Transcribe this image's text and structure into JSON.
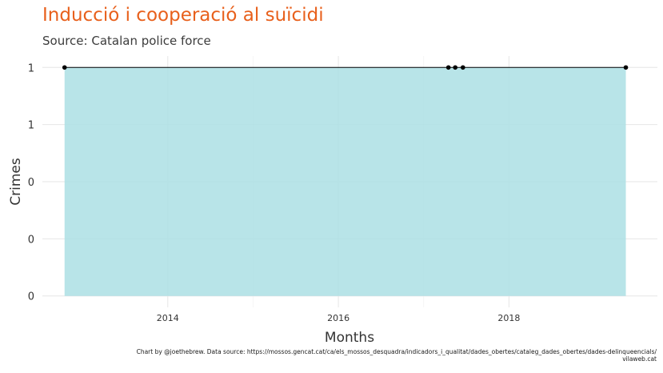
{
  "chart_data": {
    "type": "area",
    "title": "Inducció i cooperació al suïcidi",
    "subtitle": "Source: Catalan police force",
    "xlabel": "Months",
    "ylabel": "Crimes",
    "caption_lines": [
      "Chart by @joethebrew. Data source: https://mossos.gencat.cat/ca/els_mossos_desquadra/indicadors_i_qualitat/dades_obertes/cataleg_dades_obertes/dades-delinqueencials/",
      "vilaweb.cat"
    ],
    "x_ticks": [
      {
        "value": 2014,
        "label": "2014"
      },
      {
        "value": 2016,
        "label": "2016"
      },
      {
        "value": 2018,
        "label": "2018"
      }
    ],
    "y_ticks": [
      {
        "value": 0,
        "label": "0"
      },
      {
        "value": 0.25,
        "label": "0"
      },
      {
        "value": 0.5,
        "label": "0"
      },
      {
        "value": 0.75,
        "label": "1"
      },
      {
        "value": 1,
        "label": "1"
      }
    ],
    "xlim": [
      2012.53,
      2019.74
    ],
    "ylim": [
      -0.05,
      1.05
    ],
    "series": [
      {
        "x": [
          2012.79,
          2017.29,
          2017.37,
          2017.46,
          2019.37
        ],
        "y": [
          1,
          1,
          1,
          1,
          1
        ]
      }
    ],
    "grid": true,
    "colors": {
      "fill": "#acdfe4",
      "line": "#000000",
      "point": "#000000",
      "grid": "#e6e6e6",
      "title": "#e8601c"
    }
  }
}
